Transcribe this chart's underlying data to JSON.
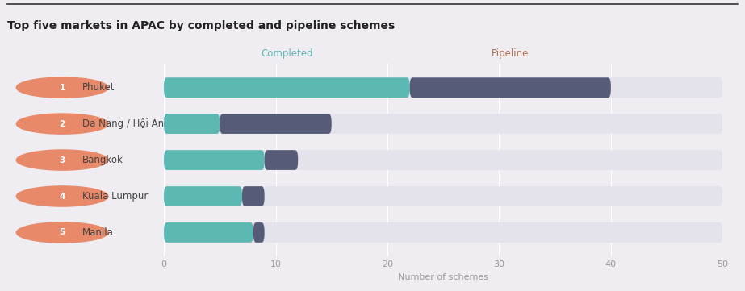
{
  "title": "Top five markets in APAC by completed and pipeline schemes",
  "categories": [
    "Phuket",
    "Da Nang / Hội An",
    "Bangkok",
    "Kuala Lumpur",
    "Manila"
  ],
  "numbers": [
    1,
    2,
    3,
    4,
    5
  ],
  "completed": [
    22,
    5,
    9,
    7,
    8
  ],
  "pipeline": [
    18,
    10,
    3,
    2,
    1
  ],
  "completed_color": "#5cb8b2",
  "pipeline_color": "#565c78",
  "background_bar_color": "#e4e2ea",
  "background_color": "#f0edf2",
  "label_completed_color": "#5cb8b2",
  "label_pipeline_color": "#b07050",
  "xlabel": "Number of schemes",
  "xlim": [
    0,
    50
  ],
  "xticks": [
    0,
    10,
    20,
    30,
    40,
    50
  ],
  "number_badge_color": "#e8896a",
  "bar_height": 0.55,
  "rounding_size": 0.25
}
